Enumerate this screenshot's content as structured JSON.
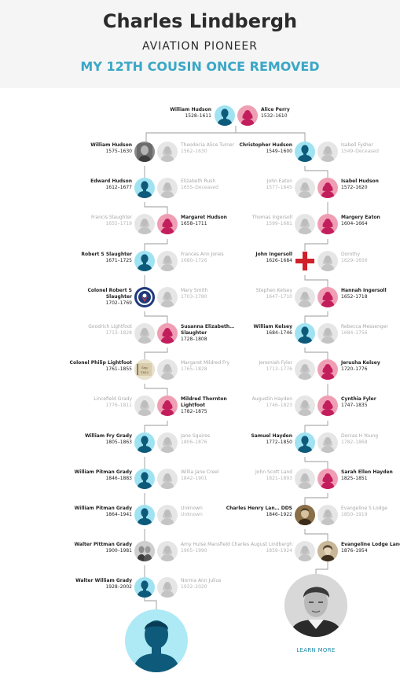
{
  "header": {
    "name": "Charles Lindbergh",
    "subtitle": "AVIATION PIONEER",
    "relationship": "MY 12TH COUSIN ONCE REMOVED"
  },
  "root": [
    {
      "name": "William Hudson",
      "dates": "1528–1611",
      "gender": "m"
    },
    {
      "name": "Alice Perry",
      "dates": "1532–1610",
      "gender": "f"
    }
  ],
  "left_line": [
    {
      "blood": {
        "name": "William Hudson",
        "dates": "1575–1630",
        "gender": "m",
        "photo": "bw-portrait"
      },
      "spouse": {
        "name": "Theodocia Alice Turner",
        "dates": "1562–1630"
      }
    },
    {
      "blood": {
        "name": "Edward Hudson",
        "dates": "1612–1677",
        "gender": "m"
      },
      "spouse": {
        "name": "Elizabeth Rush",
        "dates": "1655–Deceased"
      }
    },
    {
      "blood": {
        "name": "Margaret Hudson",
        "dates": "1658–1711",
        "gender": "f"
      },
      "spouse": {
        "name": "Francis Slaughter",
        "dates": "1655–1719"
      },
      "spouse_left": true
    },
    {
      "blood": {
        "name": "Robert S Slaughter",
        "dates": "1671–1725",
        "gender": "m"
      },
      "spouse": {
        "name": "Frances Ann Jones",
        "dates": "1680–1726"
      }
    },
    {
      "blood": {
        "name": "Colonel Robert S Slaughter",
        "dates": "1702–1769",
        "gender": "m",
        "photo": "badge"
      },
      "spouse": {
        "name": "Mary Smith",
        "dates": "1703–1780"
      }
    },
    {
      "blood": {
        "name": "Susanna Elizabeth… Slaughter",
        "dates": "1728–1808",
        "gender": "f"
      },
      "spouse": {
        "name": "Goodrich Lightfoot",
        "dates": "1713–1828"
      },
      "spouse_left": true
    },
    {
      "blood": {
        "name": "Colonel Philip Lightfoot",
        "dates": "1761–1855",
        "gender": "m",
        "photo": "document"
      },
      "spouse": {
        "name": "Margaret Mildred Fry",
        "dates": "1765–1828"
      }
    },
    {
      "blood": {
        "name": "Mildred Thornton Lightfoot",
        "dates": "1782–1875",
        "gender": "f"
      },
      "spouse": {
        "name": "Lincefield Grady",
        "dates": "1776–1811"
      },
      "spouse_left": true
    },
    {
      "blood": {
        "name": "William Fry Grady",
        "dates": "1805–1863",
        "gender": "m"
      },
      "spouse": {
        "name": "Jane Squires",
        "dates": "1806–1876"
      }
    },
    {
      "blood": {
        "name": "William Pitman Grady",
        "dates": "1846–1883",
        "gender": "m"
      },
      "spouse": {
        "name": "Willia Jane Creel",
        "dates": "1842–1901"
      }
    },
    {
      "blood": {
        "name": "William Pitman Grady",
        "dates": "1864–1941",
        "gender": "m"
      },
      "spouse": {
        "name": "Unknown",
        "dates": "Unknown"
      }
    },
    {
      "blood": {
        "name": "Walter Pittman Grady",
        "dates": "1900–1981",
        "gender": "m",
        "photo": "couple"
      },
      "spouse": {
        "name": "Amy Hulse Mansfield",
        "dates": "1905–1990"
      }
    },
    {
      "blood": {
        "name": "Walter William Grady",
        "dates": "1928–2002",
        "gender": "m"
      },
      "spouse": {
        "name": "Norma Ann Julius",
        "dates": "1932–2020"
      }
    }
  ],
  "right_line": [
    {
      "blood": {
        "name": "Christopher Hudson",
        "dates": "1549–1600",
        "gender": "m"
      },
      "spouse": {
        "name": "Isabell Fysher",
        "dates": "1549–Deceased"
      }
    },
    {
      "blood": {
        "name": "Isabel Hudson",
        "dates": "1572–1620",
        "gender": "f"
      },
      "spouse": {
        "name": "John Eaton",
        "dates": "1577–1645"
      },
      "spouse_left": true
    },
    {
      "blood": {
        "name": "Margery Eaton",
        "dates": "1604–1664",
        "gender": "f"
      },
      "spouse": {
        "name": "Thomas Ingersoll",
        "dates": "1599–1681"
      },
      "spouse_left": true
    },
    {
      "blood": {
        "name": "John Ingersoll",
        "dates": "1626–1684",
        "gender": "m",
        "photo": "cross"
      },
      "spouse": {
        "name": "Dorothy",
        "dates": "1629–1656"
      },
      "blood_left": true
    },
    {
      "blood": {
        "name": "Hannah Ingersoll",
        "dates": "1652–1718",
        "gender": "f"
      },
      "spouse": {
        "name": "Stephen Kelsey",
        "dates": "1647–1710"
      },
      "spouse_left": true
    },
    {
      "blood": {
        "name": "William Kelsey",
        "dates": "1684–1746",
        "gender": "m"
      },
      "spouse": {
        "name": "Rebecca Messenger",
        "dates": "1684–1756"
      },
      "blood_left": true
    },
    {
      "blood": {
        "name": "Jerusha Kelsey",
        "dates": "1720–1776",
        "gender": "f"
      },
      "spouse": {
        "name": "Jeremiah Fyler",
        "dates": "1713–1776"
      },
      "spouse_left": true
    },
    {
      "blood": {
        "name": "Cynthia Fyler",
        "dates": "1747–1835",
        "gender": "f"
      },
      "spouse": {
        "name": "Augustin Hayden",
        "dates": "1746–1823"
      },
      "spouse_left": true
    },
    {
      "blood": {
        "name": "Samuel Hayden",
        "dates": "1772–1850",
        "gender": "m"
      },
      "spouse": {
        "name": "Dorcas H Young",
        "dates": "1782–1868"
      },
      "blood_left": true
    },
    {
      "blood": {
        "name": "Sarah Ellen Hayden",
        "dates": "1825–1851",
        "gender": "f"
      },
      "spouse": {
        "name": "John Scott Land",
        "dates": "1821–1893"
      },
      "spouse_left": true
    },
    {
      "blood": {
        "name": "Charles Henry Lan… DDS",
        "dates": "1846–1922",
        "gender": "m",
        "photo": "sepia-portrait"
      },
      "spouse": {
        "name": "Evangeline S Lodge",
        "dates": "1850–1919"
      },
      "blood_left": true
    },
    {
      "blood": {
        "name": "Evangeline Lodge Land",
        "dates": "1876–1954",
        "gender": "f",
        "photo": "sepia-woman"
      },
      "spouse": {
        "name": "Charles August Lindbergh",
        "dates": "1859–1924"
      },
      "spouse_left": true
    }
  ],
  "learn_more": "LEARN MORE",
  "colors": {
    "accent": "#3aa7c6",
    "male": "#9fe3f2",
    "female": "#ef9fb4",
    "male_figure": "#0e5a7a",
    "female_figure": "#c31e5c",
    "cross": "#d0202a"
  }
}
